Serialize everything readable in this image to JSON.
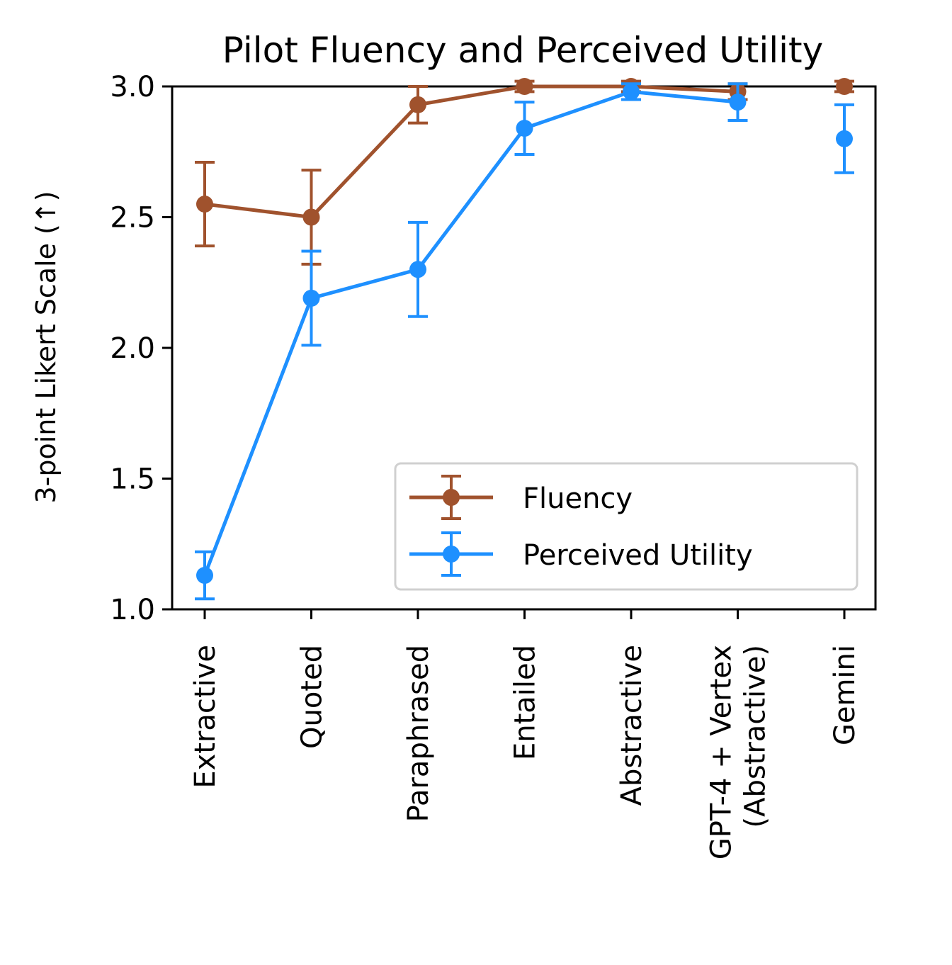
{
  "chart_data": {
    "type": "line",
    "title": "Pilot Fluency and Perceived Utility",
    "xlabel": "",
    "ylabel": "3-point Likert Scale (↑)",
    "ylim": [
      1.0,
      3.0
    ],
    "yticks": [
      "1.0",
      "1.5",
      "2.0",
      "2.5",
      "3.0"
    ],
    "categories": [
      [
        "Extractive"
      ],
      [
        "Quoted"
      ],
      [
        "Paraphrased"
      ],
      [
        "Entailed"
      ],
      [
        "Abstractive"
      ],
      [
        "GPT-4 + Vertex",
        "(Abstractive)"
      ],
      [
        "Gemini"
      ]
    ],
    "grid": false,
    "legend_position": "lower-right",
    "series": [
      {
        "name": "Fluency",
        "color": "#a0522d",
        "values": [
          2.55,
          2.5,
          2.93,
          3.0,
          3.0,
          2.98,
          3.0
        ],
        "errors": [
          0.16,
          0.18,
          0.07,
          0.02,
          0.02,
          0.03,
          0.02
        ],
        "connected_until": 5
      },
      {
        "name": "Perceived Utility",
        "color": "#1e90ff",
        "values": [
          1.13,
          2.19,
          2.3,
          2.84,
          2.98,
          2.94,
          2.8
        ],
        "errors": [
          0.09,
          0.18,
          0.18,
          0.1,
          0.03,
          0.07,
          0.13
        ],
        "connected_until": 5
      }
    ]
  }
}
